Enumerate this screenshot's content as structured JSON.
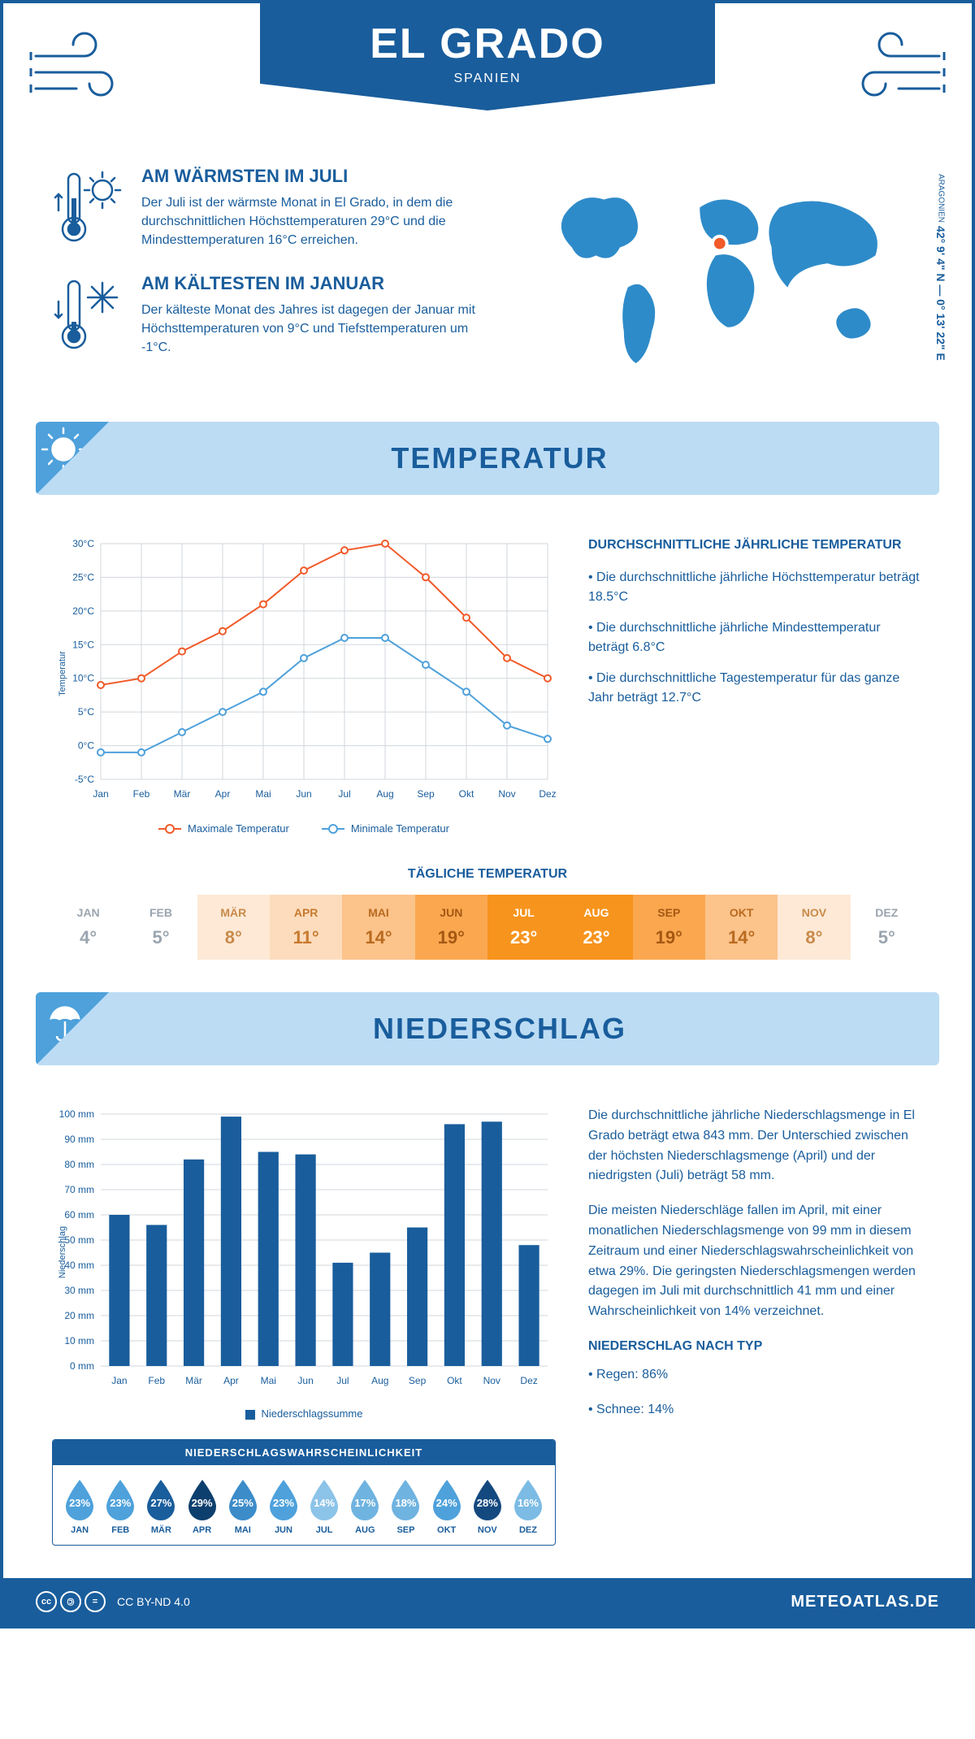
{
  "header": {
    "title": "EL GRADO",
    "subtitle": "SPANIEN"
  },
  "intro": {
    "warmest": {
      "heading": "AM WÄRMSTEN IM JULI",
      "text": "Der Juli ist der wärmste Monat in El Grado, in dem die durchschnittlichen Höchsttemperaturen 29°C und die Mindesttemperaturen 16°C erreichen."
    },
    "coldest": {
      "heading": "AM KÄLTESTEN IM JANUAR",
      "text": "Der kälteste Monat des Jahres ist dagegen der Januar mit Höchsttemperaturen von 9°C und Tiefsttemperaturen um -1°C."
    },
    "coords": "42° 9' 4\" N — 0° 13' 22\" E",
    "region": "ARAGONIEN"
  },
  "temperature_section": {
    "title": "TEMPERATUR",
    "chart": {
      "type": "line",
      "months": [
        "Jan",
        "Feb",
        "Mär",
        "Apr",
        "Mai",
        "Jun",
        "Jul",
        "Aug",
        "Sep",
        "Okt",
        "Nov",
        "Dez"
      ],
      "max_values": [
        9,
        10,
        14,
        17,
        21,
        26,
        29,
        30,
        25,
        19,
        13,
        10
      ],
      "min_values": [
        -1,
        -1,
        2,
        5,
        8,
        13,
        16,
        16,
        12,
        8,
        3,
        1
      ],
      "max_color": "#f15a29",
      "min_color": "#4ea1db",
      "ylim": [
        -5,
        30
      ],
      "ytick_step": 5,
      "y_unit": "°C",
      "y_axis_label": "Temperatur",
      "grid_color": "#d0d7de",
      "line_width": 2,
      "marker_radius": 4,
      "legend_max": "Maximale Temperatur",
      "legend_min": "Minimale Temperatur"
    },
    "summary": {
      "heading": "DURCHSCHNITTLICHE JÄHRLICHE TEMPERATUR",
      "bullets": [
        "• Die durchschnittliche jährliche Höchsttemperatur beträgt 18.5°C",
        "• Die durchschnittliche jährliche Mindesttemperatur beträgt 6.8°C",
        "• Die durchschnittliche Tagestemperatur für das ganze Jahr beträgt 12.7°C"
      ]
    },
    "daily": {
      "title": "TÄGLICHE TEMPERATUR",
      "months": [
        "JAN",
        "FEB",
        "MÄR",
        "APR",
        "MAI",
        "JUN",
        "JUL",
        "AUG",
        "SEP",
        "OKT",
        "NOV",
        "DEZ"
      ],
      "values": [
        "4°",
        "5°",
        "8°",
        "11°",
        "14°",
        "19°",
        "23°",
        "23°",
        "19°",
        "14°",
        "8°",
        "5°"
      ],
      "cell_colors": [
        "#ffffff",
        "#ffffff",
        "#fde9d6",
        "#fddcbd",
        "#fcc38b",
        "#faa74f",
        "#f7941d",
        "#f7941d",
        "#faa74f",
        "#fcc38b",
        "#fde9d6",
        "#ffffff"
      ],
      "text_colors": [
        "#9aa5af",
        "#9aa5af",
        "#c88a4a",
        "#c77a2e",
        "#b96a1f",
        "#a55812",
        "#ffffff",
        "#ffffff",
        "#a55812",
        "#b96a1f",
        "#c88a4a",
        "#9aa5af"
      ]
    }
  },
  "precip_section": {
    "title": "NIEDERSCHLAG",
    "chart": {
      "type": "bar",
      "months": [
        "Jan",
        "Feb",
        "Mär",
        "Apr",
        "Mai",
        "Jun",
        "Jul",
        "Aug",
        "Sep",
        "Okt",
        "Nov",
        "Dez"
      ],
      "values": [
        60,
        56,
        82,
        99,
        85,
        84,
        41,
        45,
        55,
        96,
        97,
        48
      ],
      "bar_color": "#195d9c",
      "ylim": [
        0,
        100
      ],
      "ytick_step": 10,
      "y_unit": " mm",
      "y_axis_label": "Niederschlag",
      "grid_color": "#d0d7de",
      "bar_width_ratio": 0.55,
      "legend": "Niederschlagssumme"
    },
    "summary": {
      "p1": "Die durchschnittliche jährliche Niederschlagsmenge in El Grado beträgt etwa 843 mm. Der Unterschied zwischen der höchsten Niederschlagsmenge (April) und der niedrigsten (Juli) beträgt 58 mm.",
      "p2": "Die meisten Niederschläge fallen im April, mit einer monatlichen Niederschlagsmenge von 99 mm in diesem Zeitraum und einer Niederschlagswahrscheinlichkeit von etwa 29%. Die geringsten Niederschlagsmengen werden dagegen im Juli mit durchschnittlich 41 mm und einer Wahrscheinlichkeit von 14% verzeichnet.",
      "type_heading": "NIEDERSCHLAG NACH TYP",
      "type_bullets": [
        "• Regen: 86%",
        "• Schnee: 14%"
      ]
    },
    "probability": {
      "title": "NIEDERSCHLAGSWAHRSCHEINLICHKEIT",
      "months": [
        "JAN",
        "FEB",
        "MÄR",
        "APR",
        "MAI",
        "JUN",
        "JUL",
        "AUG",
        "SEP",
        "OKT",
        "NOV",
        "DEZ"
      ],
      "values": [
        "23%",
        "23%",
        "27%",
        "29%",
        "25%",
        "23%",
        "14%",
        "17%",
        "18%",
        "24%",
        "28%",
        "16%"
      ],
      "colors": [
        "#4ea1db",
        "#4ea1db",
        "#195d9c",
        "#0d3f6e",
        "#3b8cc9",
        "#4ea1db",
        "#8cc3e8",
        "#6fb3e0",
        "#6fb3e0",
        "#4ea1db",
        "#14497f",
        "#7cbbe4"
      ]
    }
  },
  "footer": {
    "license": "CC BY-ND 4.0",
    "site": "METEOATLAS.DE"
  }
}
